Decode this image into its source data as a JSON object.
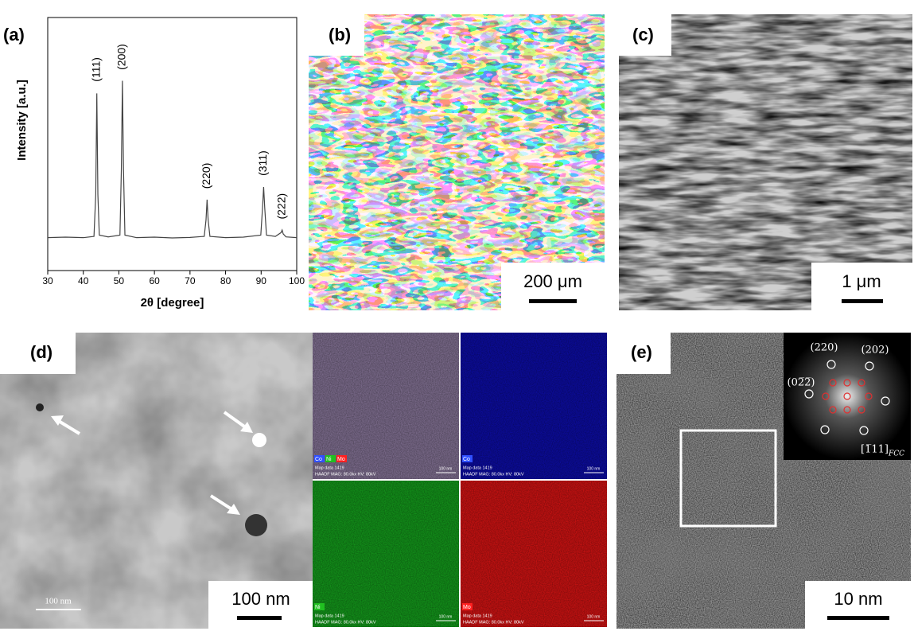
{
  "chart_data": {
    "type": "line",
    "xlabel": "2θ [degree]",
    "ylabel": "Intensity [a.u.]",
    "color": "#444444",
    "xlim": [
      30,
      100
    ],
    "xticks": [
      30,
      40,
      50,
      60,
      70,
      80,
      90,
      100
    ],
    "ylim": [
      0,
      100
    ],
    "x": [
      30,
      35,
      40,
      43,
      43.5,
      43.8,
      44.1,
      44.5,
      47,
      50.3,
      50.7,
      51,
      51.3,
      51.7,
      55,
      60,
      65,
      70,
      74,
      74.5,
      74.8,
      75.1,
      75.6,
      80,
      85,
      89.9,
      90.4,
      90.7,
      91,
      91.5,
      94,
      95.6,
      95.9,
      96.2,
      97,
      100
    ],
    "values": [
      13,
      13.2,
      13,
      13.5,
      30,
      70,
      30,
      14,
      13.3,
      14,
      40,
      75,
      40,
      14,
      13,
      13.2,
      12.9,
      13.1,
      13.5,
      20,
      28,
      20,
      13.5,
      13,
      13.2,
      14,
      25,
      33,
      25,
      14,
      13.5,
      15,
      16,
      14.5,
      13.3,
      13
    ],
    "annotations": [
      {
        "text": "(111)",
        "x": 43.8
      },
      {
        "text": "(200)",
        "x": 51
      },
      {
        "text": "(220)",
        "x": 74.8
      },
      {
        "text": "(311)",
        "x": 90.7
      },
      {
        "text": "(222)",
        "x": 95.9
      }
    ]
  },
  "panels": {
    "a": {
      "label": "(a)"
    },
    "b": {
      "label": "(b)",
      "scale_bar": "200 μm"
    },
    "c": {
      "label": "(c)",
      "scale_bar": "1 μm"
    },
    "d": {
      "label": "(d)",
      "scale_bar": "100 nm",
      "inset_scale": "100 nm",
      "eds_maps": [
        {
          "labels": [
            "Co",
            "Ni",
            "Mo"
          ]
        },
        {
          "labels": [
            "Co"
          ]
        },
        {
          "labels": [
            "Ni"
          ]
        },
        {
          "labels": [
            "Mo"
          ]
        }
      ],
      "eds_footer": [
        "Map data 1419",
        "HAADF  MAG: 80.0kx  HV: 80kV"
      ],
      "eds_scale": "100 nm"
    },
    "e": {
      "label": "(e)",
      "scale_bar": "10 nm",
      "spots": [
        "(220)",
        "(202)",
        "(02̅2̅)"
      ],
      "zone_axis": "[1̅11]",
      "zone_subscript": "FCC"
    }
  }
}
